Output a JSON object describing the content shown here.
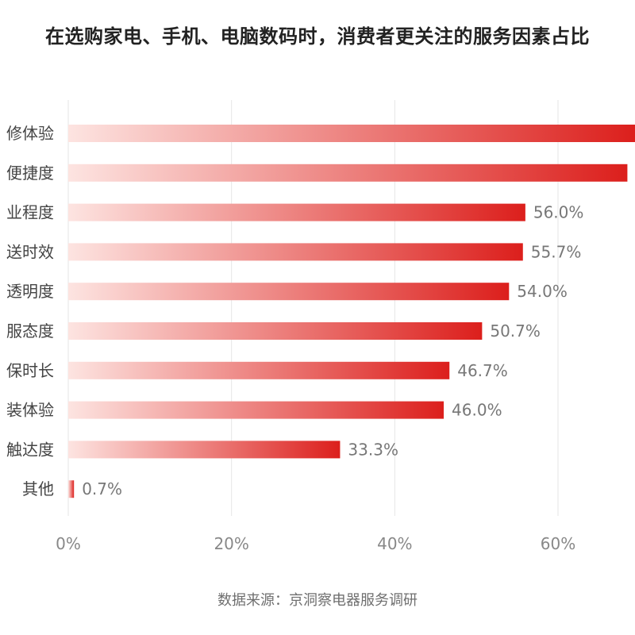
{
  "chart_data": {
    "type": "bar",
    "orientation": "horizontal",
    "title": "在选购家电、手机、电脑数码时，消费者更关注的服务因素占比",
    "source": "数据来源：京洞察电器服务调研",
    "categories": [
      "修体验",
      "便捷度",
      "业程度",
      "送时效",
      "透明度",
      "服态度",
      "保时长",
      "装体验",
      "触达度",
      "其他"
    ],
    "values": [
      69.5,
      68.5,
      56.0,
      55.7,
      54.0,
      50.7,
      46.7,
      46.0,
      33.3,
      0.7
    ],
    "value_labels": [
      "",
      "",
      "56.0%",
      "55.7%",
      "54.0%",
      "50.7%",
      "46.7%",
      "46.0%",
      "33.3%",
      "0.7%"
    ],
    "xlim": [
      0,
      70
    ],
    "xticks": [
      0,
      20,
      40,
      60
    ],
    "xtick_labels": [
      "0%",
      "20%",
      "40%",
      "60%"
    ],
    "xlabel": "",
    "ylabel": "",
    "grid": "vertical",
    "legend": "none",
    "colors": {
      "bar_start": "#fde4e1",
      "bar_end": "#dc1f1c",
      "grid": "#e6e6e6"
    }
  }
}
